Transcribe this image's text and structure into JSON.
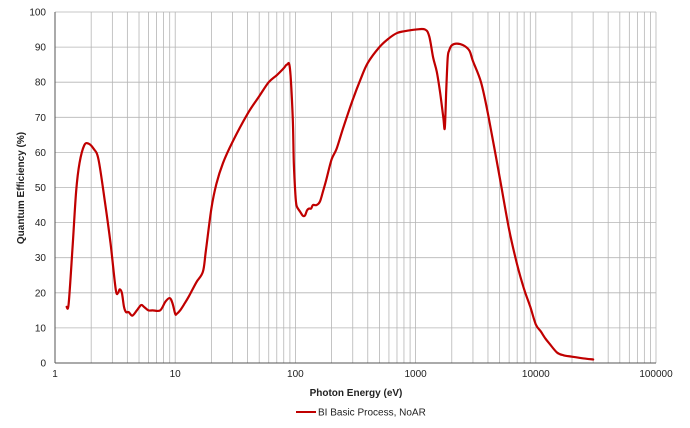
{
  "chart_data": {
    "type": "line",
    "title": "",
    "xlabel": "Photon Energy (eV)",
    "ylabel": "Quantum Efficiency (%)",
    "xscale": "log",
    "xlim": [
      1,
      100000
    ],
    "ylim": [
      0,
      100
    ],
    "x_ticks": [
      "1",
      "10",
      "100",
      "1000",
      "10000",
      "100000"
    ],
    "y_ticks": [
      "0",
      "10",
      "20",
      "30",
      "40",
      "50",
      "60",
      "70",
      "80",
      "90",
      "100"
    ],
    "grid": true,
    "legend_position": "bottom-center",
    "series": [
      {
        "name": "BI Basic Process, NoAR",
        "color": "#c00000",
        "x": [
          1.25,
          1.3,
          1.4,
          1.5,
          1.6,
          1.75,
          1.9,
          2.1,
          2.3,
          2.6,
          2.9,
          3.2,
          3.35,
          3.45,
          3.6,
          3.75,
          3.9,
          4.1,
          4.4,
          4.8,
          5.2,
          5.5,
          6.0,
          6.5,
          7.5,
          8.3,
          9.0,
          9.5,
          10.0,
          10.3,
          11,
          12,
          13,
          15,
          17,
          18,
          20,
          22,
          25,
          30,
          40,
          50,
          60,
          70,
          80,
          85,
          90,
          95,
          97,
          100,
          102,
          105,
          110,
          115,
          120,
          125,
          130,
          135,
          140,
          150,
          160,
          170,
          180,
          200,
          220,
          250,
          300,
          350,
          400,
          500,
          600,
          700,
          800,
          1000,
          1200,
          1300,
          1400,
          1500,
          1600,
          1700,
          1750,
          1800,
          1850,
          1900,
          2000,
          2200,
          2500,
          2800,
          3000,
          3500,
          4000,
          5000,
          6000,
          7000,
          8000,
          9000,
          10000,
          11000,
          12000,
          13000,
          15000,
          17000,
          20000,
          25000,
          30000
        ],
        "y": [
          16,
          17,
          33,
          49,
          57,
          62,
          62.5,
          61,
          58,
          46,
          34,
          21,
          20,
          21,
          20,
          16,
          14.5,
          14.5,
          13.5,
          15,
          16.5,
          16,
          15,
          15,
          15,
          17.5,
          18.5,
          17,
          14,
          14,
          15,
          17,
          19,
          23,
          26,
          32,
          44,
          51,
          57,
          63,
          71,
          76,
          80,
          82,
          84,
          85,
          84,
          70,
          57,
          48,
          45,
          44,
          43,
          42,
          42,
          43.5,
          44,
          44,
          45,
          45,
          46,
          49,
          52,
          58,
          61,
          67,
          75,
          81,
          85.5,
          90,
          92.5,
          94,
          94.5,
          95,
          95,
          93,
          87,
          83,
          77,
          70,
          67,
          78,
          87,
          89,
          90.5,
          91,
          90.5,
          89,
          86,
          80,
          71,
          53,
          38,
          28,
          21,
          16,
          11,
          9,
          7,
          5.5,
          3,
          2.2,
          1.8,
          1.3,
          1
        ]
      }
    ]
  }
}
